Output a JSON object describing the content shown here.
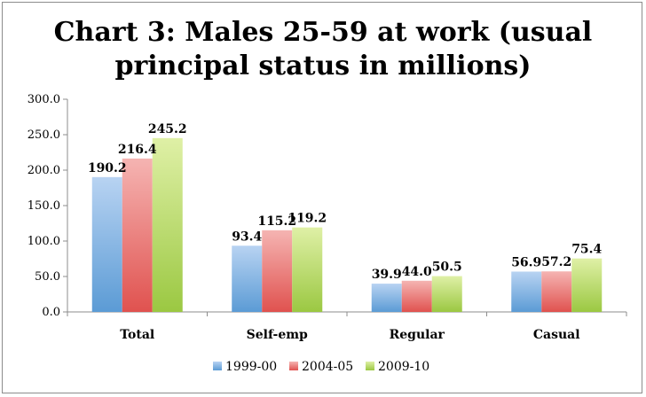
{
  "chart_data": {
    "type": "bar",
    "title": "Chart 3: Males 25-59 at work (usual principal status in millions)",
    "title_lines": [
      "Chart 3: Males 25-59 at work (usual",
      "principal status in millions)"
    ],
    "categories": [
      "Total",
      "Self-emp",
      "Regular",
      "Casual"
    ],
    "series": [
      {
        "name": "1999-00",
        "values": [
          190.2,
          93.4,
          39.9,
          56.9
        ],
        "color": "#5b9bd5",
        "light": "#b8d3f2"
      },
      {
        "name": "2004-05",
        "values": [
          216.4,
          115.2,
          44.0,
          57.2
        ],
        "color": "#e0524f",
        "light": "#f5b4b2"
      },
      {
        "name": "2009-10",
        "values": [
          245.2,
          119.2,
          50.5,
          75.4
        ],
        "color": "#9bc842",
        "light": "#dff0a6"
      }
    ],
    "ylim": [
      0,
      300
    ],
    "yticks": [
      0,
      50,
      100,
      150,
      200,
      250,
      300
    ],
    "ytick_labels": [
      "0.0",
      "50.0",
      "100.0",
      "150.0",
      "200.0",
      "250.0",
      "300.0"
    ],
    "value_labels": [
      "190.2",
      "216.4",
      "245.2",
      "93.4",
      "115.2",
      "119.2",
      "39.9",
      "44.0",
      "50.5",
      "56.9",
      "57.2",
      "75.4"
    ],
    "grid": false,
    "legend_position": "bottom"
  }
}
